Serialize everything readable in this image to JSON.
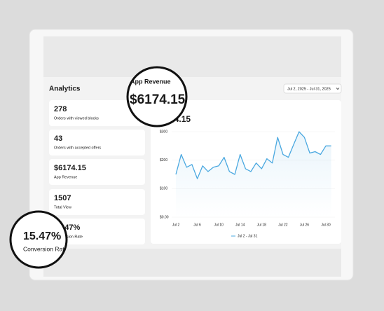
{
  "header": {
    "title": "Analytics",
    "date_range": "Jul 2, 2025 - Jul 31, 2025"
  },
  "cards": [
    {
      "value": "278",
      "label": "Orders with viewed blocks"
    },
    {
      "value": "43",
      "label": "Orders with accepted offers"
    },
    {
      "value": "$6174.15",
      "label": "App Revenue"
    },
    {
      "value": "1507",
      "label": "Total View"
    },
    {
      "value": "15.47%",
      "label": "Conversion Rate"
    }
  ],
  "magnifiers": [
    {
      "label": "App Revenue",
      "value": "$6174.15"
    },
    {
      "value": "15.47%",
      "label": "Conversion Rate"
    }
  ],
  "chart_data": {
    "type": "line",
    "title": "$6174.15",
    "categories": [
      "Jul 2",
      null,
      null,
      null,
      "Jul 6",
      null,
      null,
      null,
      "Jul 10",
      null,
      null,
      null,
      "Jul 14",
      null,
      null,
      null,
      "Jul 18",
      null,
      null,
      null,
      "Jul 22",
      null,
      null,
      null,
      "Jul 26",
      null,
      null,
      null,
      "Jul 30",
      null
    ],
    "series": [
      {
        "name": "Jul 2 - Jul 31",
        "color": "#4aa8e0",
        "values": [
          150,
          220,
          175,
          185,
          135,
          180,
          160,
          175,
          180,
          210,
          160,
          150,
          220,
          170,
          160,
          190,
          170,
          205,
          190,
          280,
          220,
          210,
          255,
          300,
          280,
          225,
          230,
          220,
          250,
          250
        ]
      }
    ],
    "ylim": [
      0,
      300
    ],
    "yticks": [
      {
        "value": 300,
        "label": "$300"
      },
      {
        "value": 200,
        "label": "$200"
      },
      {
        "value": 100,
        "label": "$100"
      },
      {
        "value": 0,
        "label": "$0.00"
      }
    ]
  }
}
